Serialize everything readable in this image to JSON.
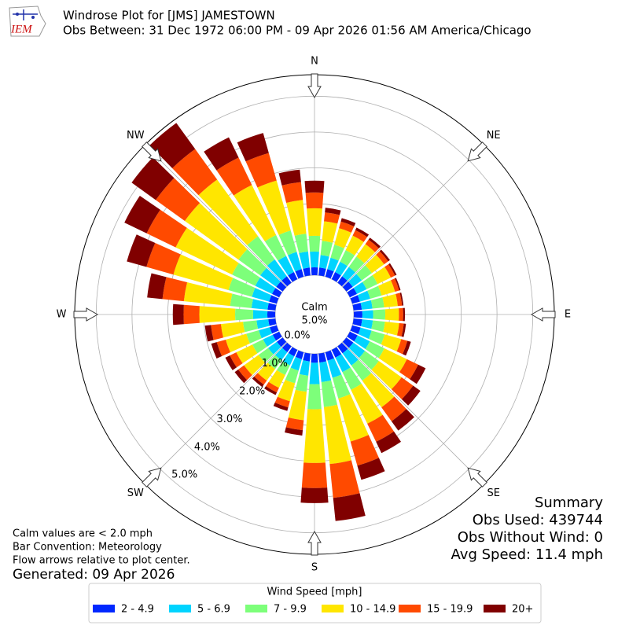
{
  "header": {
    "title": "Windrose Plot for [JMS] JAMESTOWN",
    "subtitle": "Obs Between: 31 Dec 1972 06:00 PM - 09 Apr 2026 01:56 AM America/Chicago"
  },
  "chart_data": {
    "type": "windrose",
    "x": [
      0,
      10,
      20,
      30,
      40,
      50,
      60,
      70,
      80,
      90,
      100,
      110,
      120,
      130,
      140,
      150,
      160,
      170,
      180,
      190,
      200,
      210,
      220,
      230,
      240,
      250,
      260,
      270,
      280,
      290,
      300,
      310,
      320,
      330,
      340,
      350
    ],
    "xticks": [
      {
        "value": 0,
        "label": "N"
      },
      {
        "value": 45,
        "label": "NE"
      },
      {
        "value": 90,
        "label": "E"
      },
      {
        "value": 135,
        "label": "SE"
      },
      {
        "value": 180,
        "label": "S"
      },
      {
        "value": 225,
        "label": "SW"
      },
      {
        "value": 270,
        "label": "W"
      },
      {
        "value": 315,
        "label": "NW"
      }
    ],
    "ylim": [
      0,
      5.6
    ],
    "yticks": [
      {
        "value": 0,
        "label": "0.0%"
      },
      {
        "value": 1,
        "label": "1.0%"
      },
      {
        "value": 2,
        "label": "2.0%"
      },
      {
        "value": 3,
        "label": "3.0%"
      },
      {
        "value": 4,
        "label": "4.0%"
      },
      {
        "value": 5,
        "label": "5.0%"
      }
    ],
    "grid": true,
    "calm_label": "Calm",
    "calm_value": "5.0%",
    "legend_title": "Wind Speed [mph]",
    "series": [
      {
        "name": "2 - 4.9",
        "color": "#0028ff",
        "values": [
          0.22,
          0.22,
          0.22,
          0.22,
          0.22,
          0.22,
          0.22,
          0.22,
          0.23,
          0.24,
          0.24,
          0.24,
          0.24,
          0.24,
          0.24,
          0.24,
          0.24,
          0.25,
          0.25,
          0.22,
          0.2,
          0.2,
          0.2,
          0.2,
          0.2,
          0.2,
          0.2,
          0.22,
          0.22,
          0.22,
          0.22,
          0.22,
          0.22,
          0.22,
          0.22,
          0.22
        ]
      },
      {
        "name": "5 - 6.9",
        "color": "#00d4ff",
        "values": [
          0.44,
          0.35,
          0.33,
          0.32,
          0.32,
          0.31,
          0.3,
          0.3,
          0.3,
          0.3,
          0.3,
          0.32,
          0.38,
          0.4,
          0.42,
          0.45,
          0.5,
          0.55,
          0.6,
          0.4,
          0.33,
          0.28,
          0.28,
          0.3,
          0.3,
          0.32,
          0.33,
          0.4,
          0.45,
          0.5,
          0.52,
          0.55,
          0.58,
          0.5,
          0.5,
          0.45
        ]
      },
      {
        "name": "7 - 9.9",
        "color": "#7dff7a",
        "values": [
          0.44,
          0.4,
          0.38,
          0.36,
          0.36,
          0.35,
          0.34,
          0.33,
          0.33,
          0.34,
          0.34,
          0.38,
          0.45,
          0.48,
          0.52,
          0.55,
          0.6,
          0.7,
          0.7,
          0.45,
          0.37,
          0.3,
          0.3,
          0.33,
          0.33,
          0.36,
          0.38,
          0.5,
          0.6,
          0.68,
          0.72,
          0.75,
          0.8,
          0.65,
          0.62,
          0.5
        ]
      },
      {
        "name": "10 - 14.9",
        "color": "#ffe600",
        "values": [
          0.77,
          0.55,
          0.48,
          0.45,
          0.43,
          0.42,
          0.41,
          0.39,
          0.38,
          0.38,
          0.4,
          0.48,
          0.7,
          0.78,
          0.92,
          1.05,
          1.25,
          1.6,
          1.5,
          0.8,
          0.52,
          0.4,
          0.4,
          0.5,
          0.5,
          0.6,
          0.62,
          1.0,
          1.3,
          1.6,
          1.75,
          1.85,
          1.95,
          1.55,
          1.45,
          0.95
        ]
      },
      {
        "name": "15 - 19.9",
        "color": "#ff4a00",
        "values": [
          0.44,
          0.25,
          0.19,
          0.17,
          0.15,
          0.14,
          0.13,
          0.12,
          0.12,
          0.12,
          0.13,
          0.18,
          0.35,
          0.4,
          0.48,
          0.56,
          0.7,
          0.95,
          0.7,
          0.28,
          0.18,
          0.14,
          0.14,
          0.2,
          0.2,
          0.26,
          0.28,
          0.44,
          0.6,
          0.78,
          0.9,
          1.0,
          1.05,
          0.85,
          0.8,
          0.5
        ]
      },
      {
        "name": "20+",
        "color": "#800000",
        "values": [
          0.33,
          0.13,
          0.1,
          0.08,
          0.07,
          0.06,
          0.05,
          0.04,
          0.04,
          0.05,
          0.06,
          0.1,
          0.23,
          0.25,
          0.32,
          0.35,
          0.41,
          0.65,
          0.42,
          0.15,
          0.1,
          0.08,
          0.08,
          0.12,
          0.14,
          0.16,
          0.17,
          0.3,
          0.43,
          0.57,
          0.69,
          0.83,
          0.9,
          0.63,
          0.58,
          0.35
        ]
      }
    ]
  },
  "notes": [
    "Calm values are < 2.0 mph",
    "Bar Convention: Meteorology",
    "Flow arrows relative to plot center."
  ],
  "generated": "Generated: 09 Apr 2026",
  "summary": [
    "Summary",
    "Obs Used: 439744",
    "Obs Without Wind: 0",
    "Avg Speed: 11.4 mph"
  ]
}
